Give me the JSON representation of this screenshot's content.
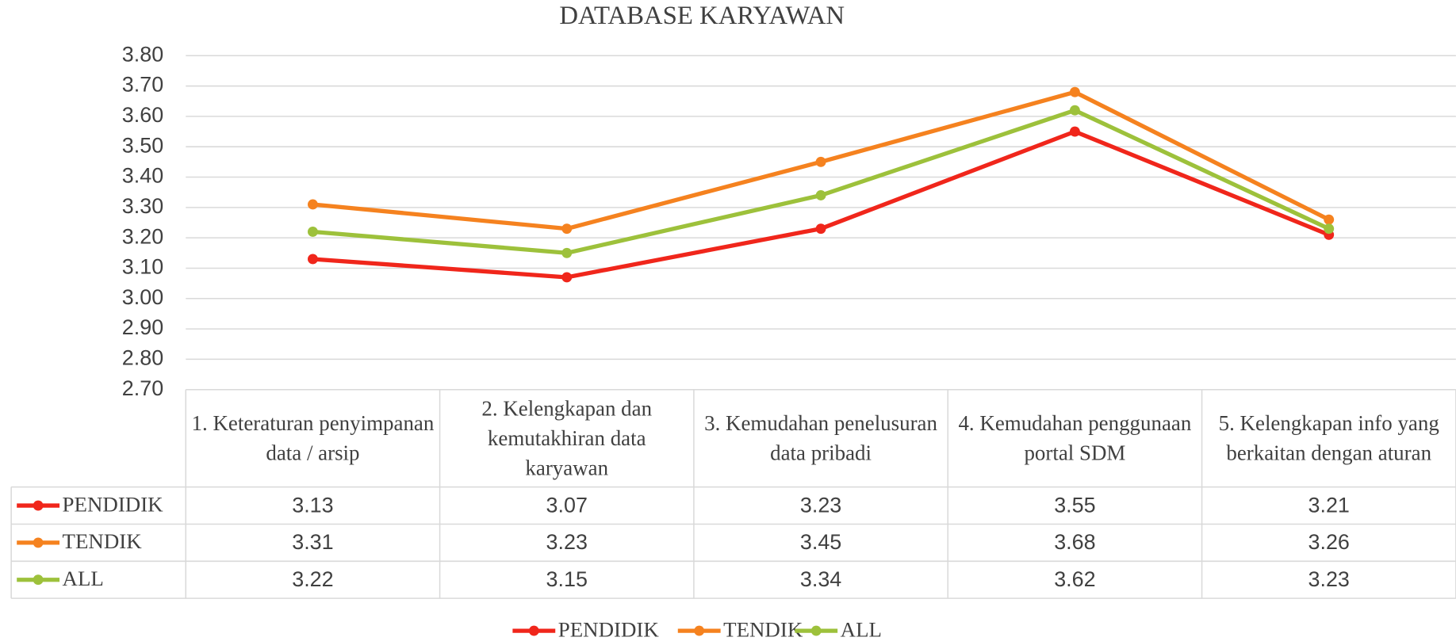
{
  "chart_data": {
    "type": "line",
    "title": "DATABASE KARYAWAN",
    "categories": [
      "1. Keteraturan penyimpanan data / arsip",
      "2. Kelengkapan dan kemutakhiran data karyawan",
      "3. Kemudahan penelusuran data pribadi",
      "4. Kemudahan penggunaan portal SDM",
      "5. Kelengkapan info yang berkaitan dengan aturan"
    ],
    "series": [
      {
        "name": "PENDIDIK",
        "color": "#f0261b",
        "values": [
          3.13,
          3.07,
          3.23,
          3.55,
          3.21
        ]
      },
      {
        "name": "TENDIK",
        "color": "#f5821f",
        "values": [
          3.31,
          3.23,
          3.45,
          3.68,
          3.26
        ]
      },
      {
        "name": "ALL",
        "color": "#9dc13b",
        "values": [
          3.22,
          3.15,
          3.34,
          3.62,
          3.23
        ]
      }
    ],
    "ylim": [
      2.7,
      3.8
    ],
    "yticks": [
      {
        "value": 2.7,
        "label": "2.70"
      },
      {
        "value": 2.8,
        "label": "2.80"
      },
      {
        "value": 2.9,
        "label": "2.90"
      },
      {
        "value": 3.0,
        "label": "3.00"
      },
      {
        "value": 3.1,
        "label": "3.10"
      },
      {
        "value": 3.2,
        "label": "3.20"
      },
      {
        "value": 3.3,
        "label": "3.30"
      },
      {
        "value": 3.4,
        "label": "3.40"
      },
      {
        "value": 3.5,
        "label": "3.50"
      },
      {
        "value": 3.6,
        "label": "3.60"
      },
      {
        "value": 3.7,
        "label": "3.70"
      },
      {
        "value": 3.8,
        "label": "3.80"
      }
    ],
    "grid": true,
    "legend": "bottom",
    "data_table": true
  }
}
